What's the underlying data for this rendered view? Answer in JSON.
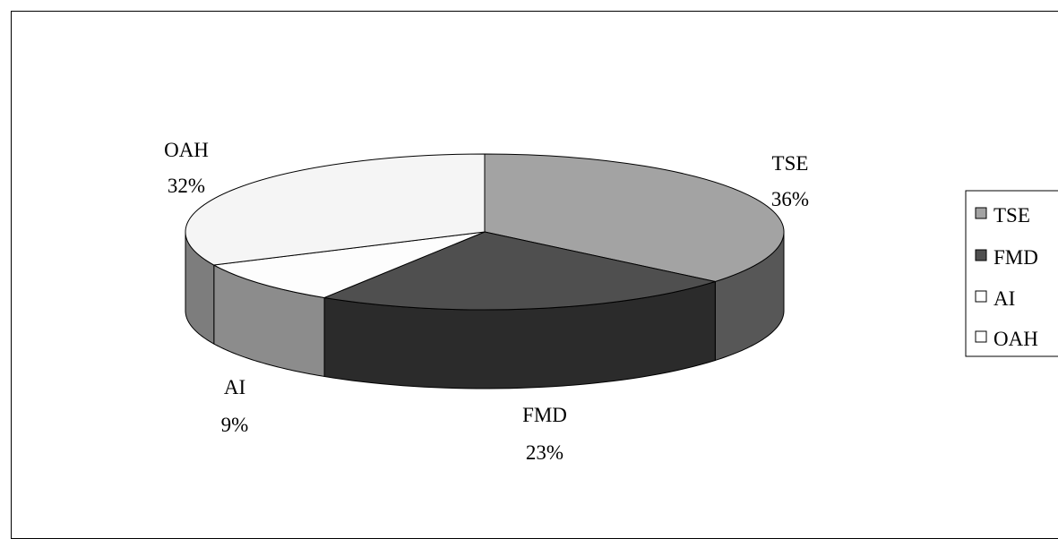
{
  "chart_data": {
    "type": "pie",
    "style": "3d",
    "slices": [
      {
        "label": "TSE",
        "value": 36,
        "display": "36%",
        "color": "#a3a3a3",
        "side_color": "#575757"
      },
      {
        "label": "FMD",
        "value": 23,
        "display": "23%",
        "color": "#4f4f4f",
        "side_color": "#2b2b2b"
      },
      {
        "label": "AI",
        "value": 9,
        "display": "9%",
        "color": "#fdfdfd",
        "side_color": "#8c8c8c"
      },
      {
        "label": "OAH",
        "value": 32,
        "display": "32%",
        "color": "#f5f5f5",
        "side_color": "#7d7d7d"
      }
    ],
    "legend": {
      "position": "right",
      "items": [
        {
          "label": "TSE",
          "color": "#a3a3a3"
        },
        {
          "label": "FMD",
          "color": "#4f4f4f"
        },
        {
          "label": "AI",
          "color": "#ffffff"
        },
        {
          "label": "OAH",
          "color": "#ffffff"
        }
      ]
    }
  }
}
